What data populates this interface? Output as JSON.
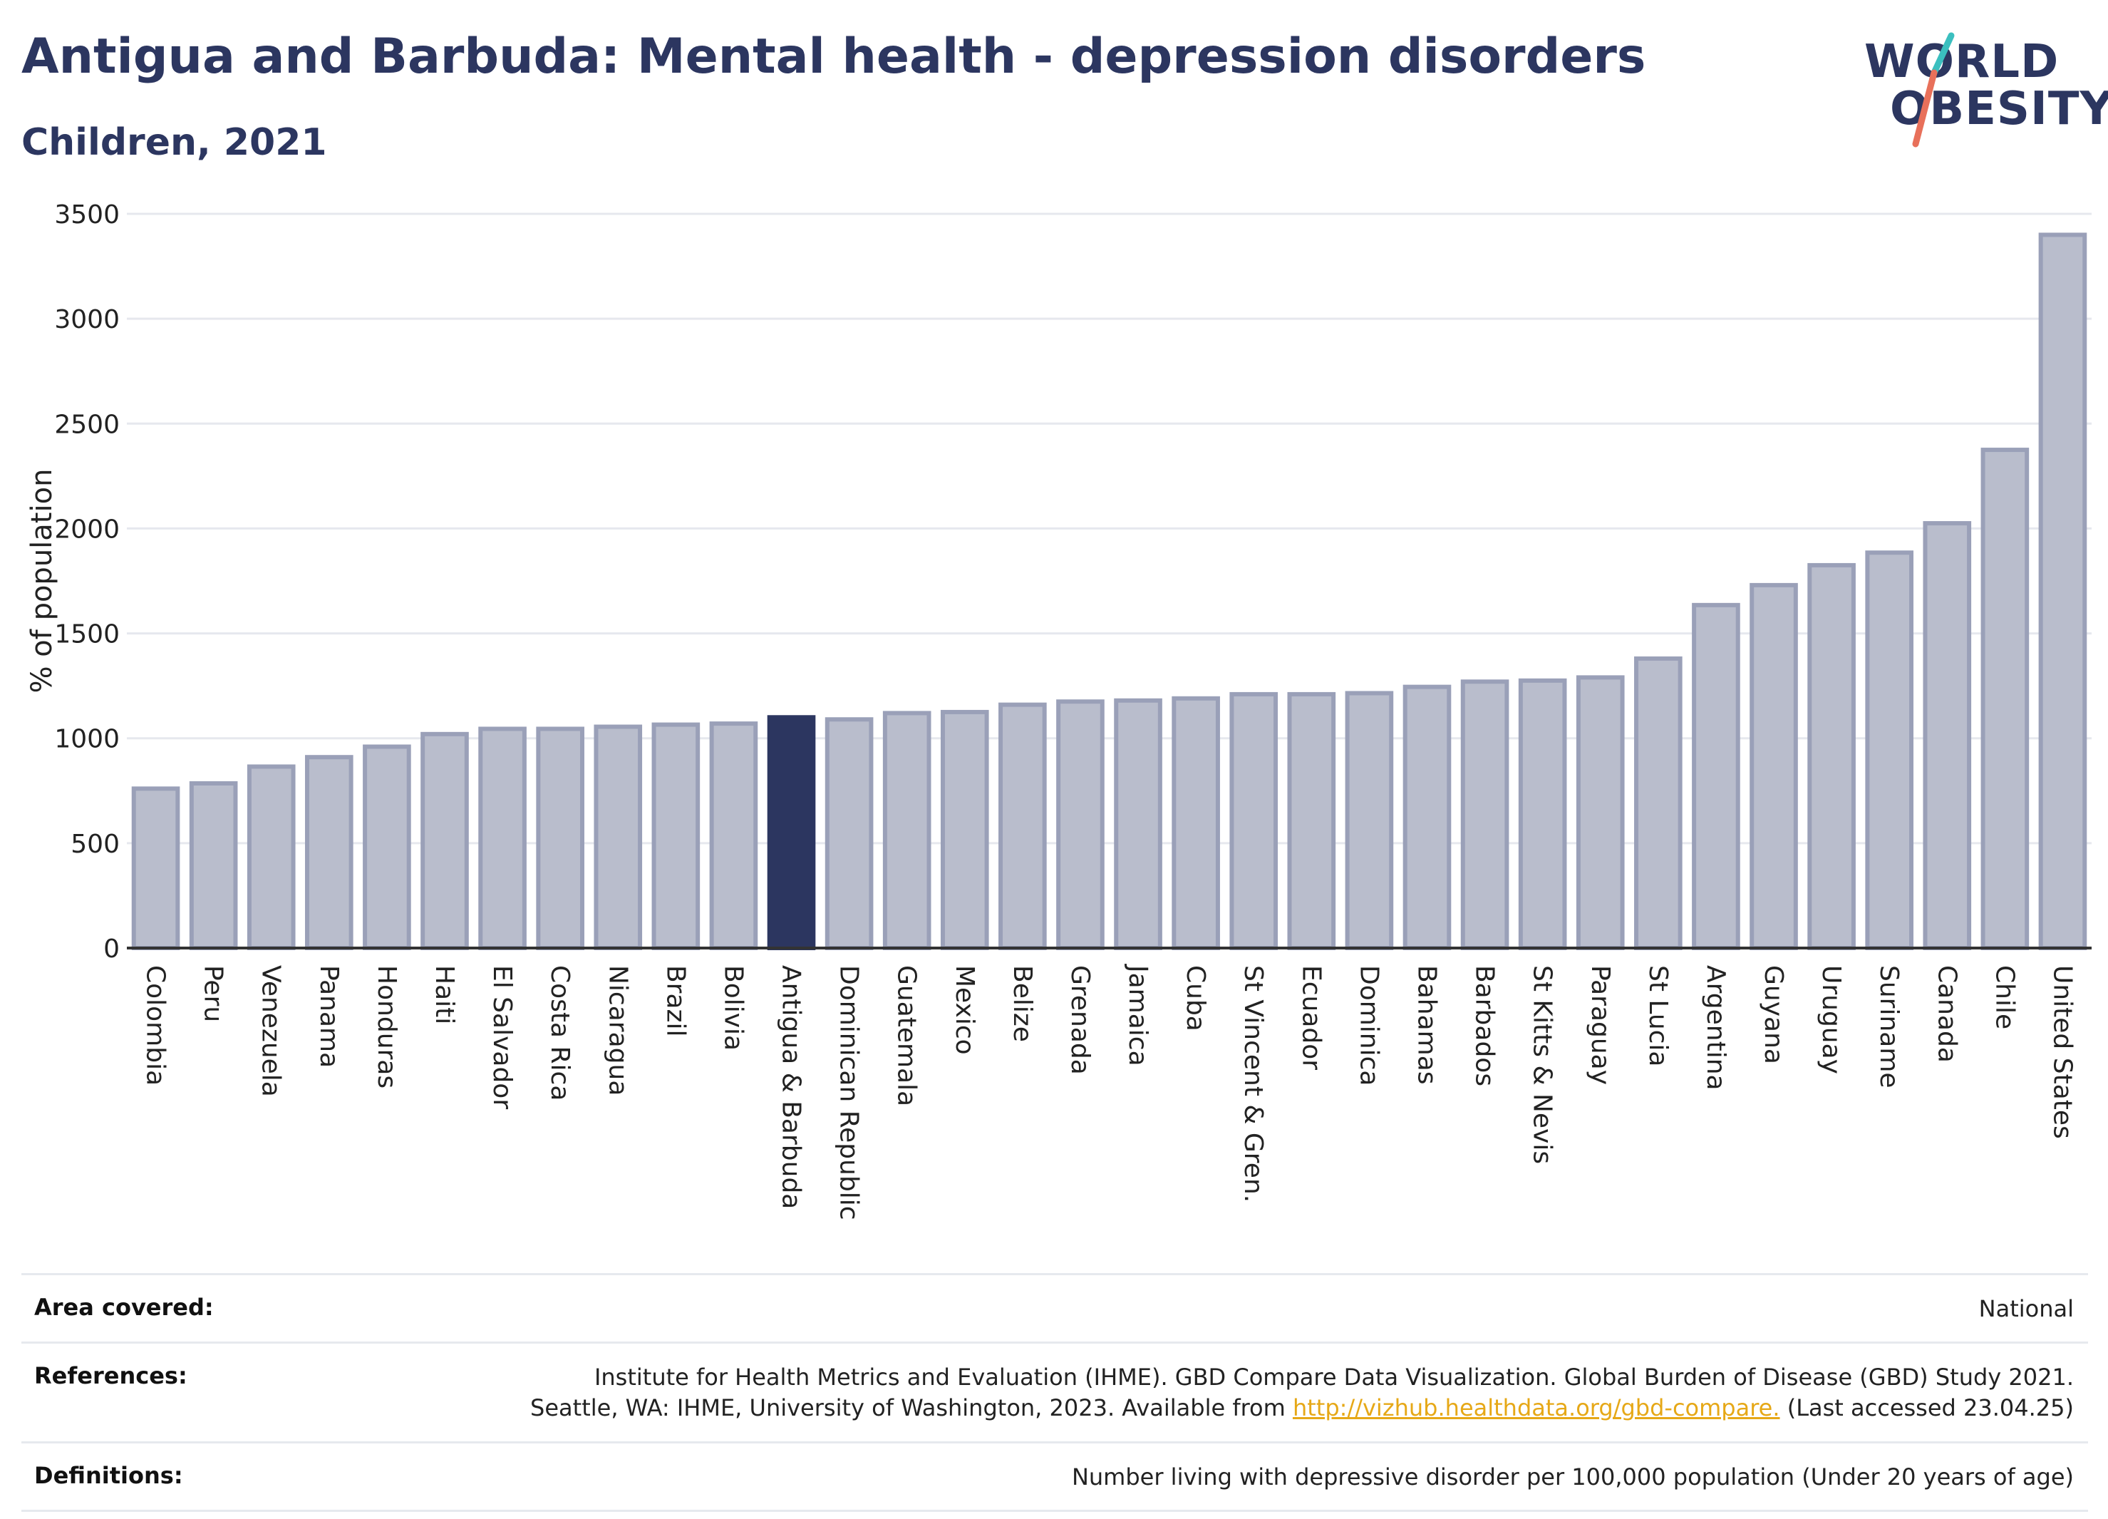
{
  "header": {
    "title": "Antigua and Barbuda: Mental health - depression disorders",
    "subtitle": "Children, 2021"
  },
  "logo": {
    "line1": "WORLD",
    "line2": "OBESITY",
    "colors": {
      "text": "#2c3660",
      "slash_teal": "#3bbfbf",
      "slash_coral": "#e8705a"
    }
  },
  "chart_data": {
    "type": "bar",
    "title": "",
    "xlabel": "",
    "ylabel": "% of population",
    "ylim": [
      0,
      3500
    ],
    "yticks": [
      0,
      500,
      1000,
      1500,
      2000,
      2500,
      3000,
      3500
    ],
    "grid": true,
    "highlight_category": "Antigua & Barbuda",
    "colors": {
      "bar": "#b9bdcc",
      "bar_stroke": "#9aa0b8",
      "highlight": "#2c3660",
      "grid": "#e6e8ee",
      "axis": "#333333"
    },
    "categories": [
      "Colombia",
      "Peru",
      "Venezuela",
      "Panama",
      "Honduras",
      "Haiti",
      "El Salvador",
      "Costa Rica",
      "Nicaragua",
      "Brazil",
      "Bolivia",
      "Antigua & Barbuda",
      "Dominican Republic",
      "Guatemala",
      "Mexico",
      "Belize",
      "Grenada",
      "Jamaica",
      "Cuba",
      "St Vincent & Gren.",
      "Ecuador",
      "Dominica",
      "Bahamas",
      "Barbados",
      "St Kitts & Nevis",
      "Paraguay",
      "St Lucia",
      "Argentina",
      "Guyana",
      "Uruguay",
      "Suriname",
      "Canada",
      "Chile",
      "United States"
    ],
    "values": [
      760,
      785,
      865,
      910,
      960,
      1020,
      1045,
      1045,
      1055,
      1065,
      1070,
      1100,
      1090,
      1120,
      1125,
      1160,
      1175,
      1180,
      1190,
      1210,
      1210,
      1215,
      1245,
      1270,
      1275,
      1290,
      1380,
      1635,
      1730,
      1825,
      1885,
      2025,
      2375,
      3400
    ]
  },
  "footer": {
    "area_label": "Area covered:",
    "area_value": "National",
    "references_label": "References:",
    "references_line1": "Institute for Health Metrics and Evaluation (IHME). GBD Compare Data Visualization. Global Burden of Disease (GBD) Study 2021.",
    "references_line2_pre": "Seattle, WA: IHME, University of Washington, 2023. Available from",
    "references_link": "http://vizhub.healthdata.org/gbd-compare.",
    "references_line2_post": "(Last accessed 23.04.25)",
    "definitions_label": "Definitions:",
    "definitions_value": "Number living with depressive disorder per 100,000 population (Under 20 years of age)"
  }
}
